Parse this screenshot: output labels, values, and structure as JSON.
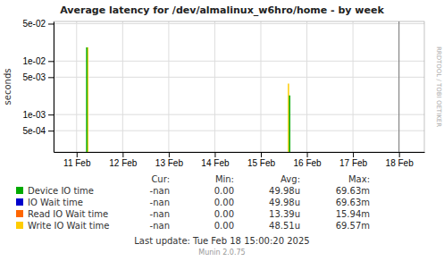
{
  "chart_data": {
    "type": "stem",
    "title": "Average latency for /dev/almalinux_w6hro/home - by week",
    "y_label": "seconds",
    "log": "y",
    "grid": true,
    "xlim": [
      0.5,
      8.55
    ],
    "xticks": [
      {
        "value": 1,
        "label": "11 Feb"
      },
      {
        "value": 2,
        "label": "12 Feb"
      },
      {
        "value": 3,
        "label": "13 Feb"
      },
      {
        "value": 4,
        "label": "14 Feb"
      },
      {
        "value": 5,
        "label": "15 Feb"
      },
      {
        "value": 6,
        "label": "16 Feb"
      },
      {
        "value": 7,
        "label": "17 Feb"
      },
      {
        "value": 8,
        "label": "18 Feb"
      }
    ],
    "ylim": [
      0.0002,
      0.055
    ],
    "yticks": [
      {
        "value": 0.0005,
        "label": "5e-04"
      },
      {
        "value": 0.001,
        "label": "1e-03"
      },
      {
        "value": 0.005,
        "label": "5e-03"
      },
      {
        "value": 0.01,
        "label": "1e-02"
      },
      {
        "value": 0.05,
        "label": "5e-02"
      }
    ],
    "vlines": [
      8
    ],
    "legend_columns": [
      "Cur:",
      "Min:",
      "Avg:",
      "Max:"
    ],
    "series": [
      {
        "name": "Device IO time",
        "color": "#00aa00",
        "x": [
          1.22,
          5.625
        ],
        "values": [
          0.018,
          0.00228
        ],
        "stats": [
          "-nan",
          "0.00",
          "49.98u",
          "69.63m"
        ]
      },
      {
        "name": "IO Wait time",
        "color": "#0000cc",
        "x": [],
        "values": [],
        "stats": [
          "-nan",
          "0.00",
          "49.98u",
          "69.63m"
        ]
      },
      {
        "name": "Read IO Wait time",
        "color": "#ff6600",
        "x": [],
        "values": [],
        "stats": [
          "-nan",
          "0.00",
          "13.39u",
          "15.94m"
        ]
      },
      {
        "name": "Write IO Wait time",
        "color": "#ffcc00",
        "x": [
          1.24,
          5.6
        ],
        "values": [
          0.018,
          0.0038
        ],
        "stats": [
          "-nan",
          "0.00",
          "48.51u",
          "69.57m"
        ]
      }
    ],
    "annotations": [
      "Last update: Tue Feb 18 15:00:20 2025",
      "Munin 2.0.75",
      "RRDTOOL / TOBI OETIKER"
    ]
  }
}
